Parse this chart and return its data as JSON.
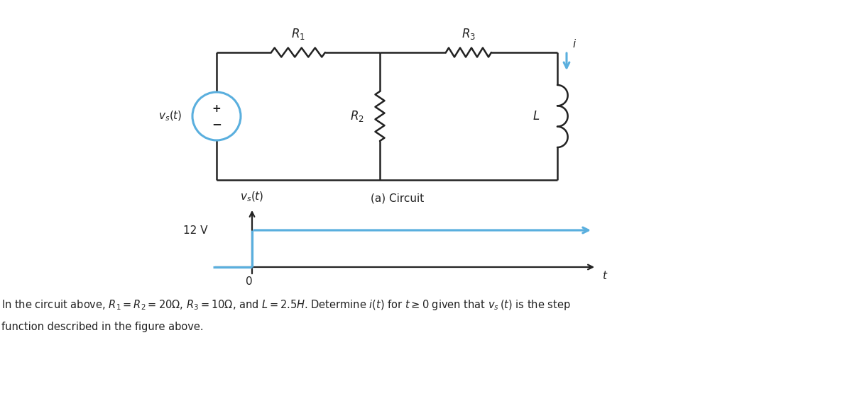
{
  "fig_width": 12.0,
  "fig_height": 5.59,
  "bg_color": "#ffffff",
  "circuit_color": "#222222",
  "blue_color": "#5aafde",
  "title_text": "(a) Circuit",
  "step_label": "12 V",
  "vs_graph_label": "$v_s(t)$",
  "t_label": "$t$",
  "origin_label": "0",
  "R1_label": "$R_1$",
  "R2_label": "$R_2$",
  "R3_label": "$R_3$",
  "L_label": "$L$",
  "i_label": "$i$",
  "vs_source_label": "$v_s(t)$",
  "body_line1": "In the circuit above, $R_1 = R_2 = 20\\Omega$, $R_3 = 10\\Omega$, and $L = 2.5H$. Determine $i(t)$ for $t \\geq 0$ given that $v_s\\,(t)$ is the step",
  "body_line2": "function described in the figure above."
}
